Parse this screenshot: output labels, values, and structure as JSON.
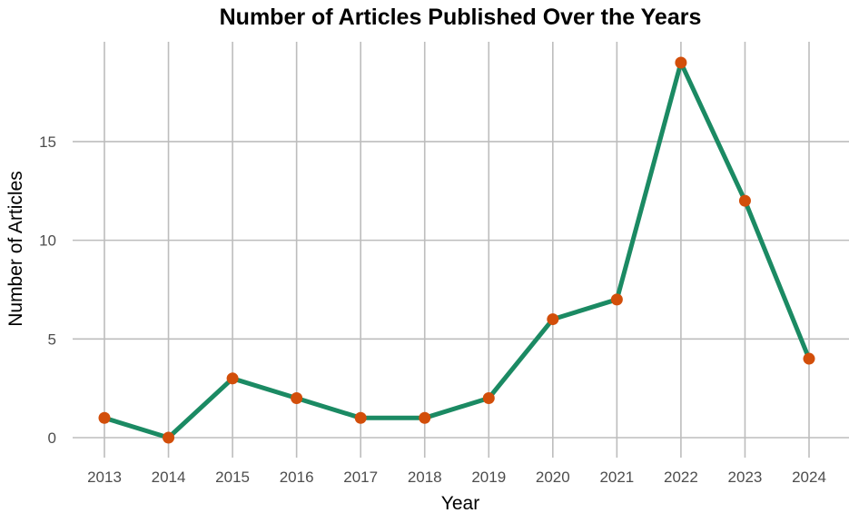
{
  "chart_data": {
    "type": "line",
    "title": "Number of Articles Published Over the Years",
    "xlabel": "Year",
    "ylabel": "Number of Articles",
    "x": [
      "2013",
      "2014",
      "2015",
      "2016",
      "2017",
      "2018",
      "2019",
      "2020",
      "2021",
      "2022",
      "2023",
      "2024"
    ],
    "series": [
      {
        "values": [
          1,
          0,
          3,
          2,
          1,
          1,
          2,
          6,
          7,
          19,
          12,
          4
        ]
      }
    ],
    "yticks": [
      0,
      5,
      10,
      15
    ],
    "ylim": [
      0,
      19
    ],
    "grid": true,
    "legend": "none",
    "colors": {
      "line": "#1b8a63",
      "point": "#d24e0a",
      "grid": "#bdbdbd"
    }
  }
}
